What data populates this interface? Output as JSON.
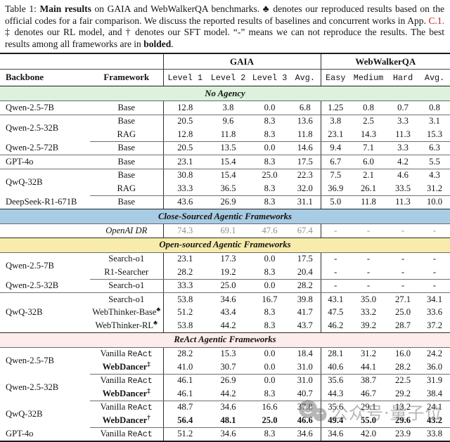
{
  "caption": {
    "segments": [
      {
        "t": "Table 1: "
      },
      {
        "t": "Main results",
        "b": true
      },
      {
        "t": " on GAIA and WebWalkerQA benchmarks. ♣ denotes our reproduced results based on the official codes for a fair comparison. We discuss the reported results of baselines and concurrent works in App. "
      },
      {
        "t": "C.1.",
        "red": true
      },
      {
        "t": " ‡ denotes our RL model, and † denotes our SFT model. “-” means we can not reproduce the results. The best results among all frameworks are in "
      },
      {
        "t": "bolded",
        "b": true
      },
      {
        "t": "."
      }
    ]
  },
  "table": {
    "group_headers": [
      "GAIA",
      "WebWalkerQA"
    ],
    "columns": [
      "Backbone",
      "Framework",
      "Level 1",
      "Level 2",
      "Level 3",
      "Avg.",
      "Easy",
      "Medium",
      "Hard",
      "Avg."
    ],
    "sections": [
      {
        "title": "No Agency",
        "bg": "#dcf2dc",
        "groups": [
          {
            "backbone": "Qwen-2.5-7B",
            "rows": [
              {
                "fw": "Base",
                "vals": [
                  "12.8",
                  "3.8",
                  "0.0",
                  "6.8",
                  "1.25",
                  "0.8",
                  "0.7",
                  "0.8"
                ]
              }
            ]
          },
          {
            "backbone": "Qwen-2.5-32B",
            "rows": [
              {
                "fw": "Base",
                "vals": [
                  "20.5",
                  "9.6",
                  "8.3",
                  "13.6",
                  "3.8",
                  "2.5",
                  "3.3",
                  "3.1"
                ]
              },
              {
                "fw": "RAG",
                "vals": [
                  "12.8",
                  "11.8",
                  "8.3",
                  "11.8",
                  "23.1",
                  "14.3",
                  "11.3",
                  "15.3"
                ]
              }
            ]
          },
          {
            "backbone": "Qwen-2.5-72B",
            "rows": [
              {
                "fw": "Base",
                "vals": [
                  "20.5",
                  "13.5",
                  "0.0",
                  "14.6",
                  "9.4",
                  "7.1",
                  "3.3",
                  "6.3"
                ]
              }
            ]
          },
          {
            "backbone": "GPT-4o",
            "rows": [
              {
                "fw": "Base",
                "vals": [
                  "23.1",
                  "15.4",
                  "8.3",
                  "17.5",
                  "6.7",
                  "6.0",
                  "4.2",
                  "5.5"
                ]
              }
            ]
          },
          {
            "backbone": "QwQ-32B",
            "rows": [
              {
                "fw": "Base",
                "vals": [
                  "30.8",
                  "15.4",
                  "25.0",
                  "22.3",
                  "7.5",
                  "2.1",
                  "4.6",
                  "4.3"
                ]
              },
              {
                "fw": "RAG",
                "vals": [
                  "33.3",
                  "36.5",
                  "8.3",
                  "32.0",
                  "36.9",
                  "26.1",
                  "33.5",
                  "31.2"
                ]
              }
            ]
          },
          {
            "backbone": "DeepSeek-R1-671B",
            "rows": [
              {
                "fw": "Base",
                "vals": [
                  "43.6",
                  "26.9",
                  "8.3",
                  "31.1",
                  "5.0",
                  "11.8",
                  "11.3",
                  "10.0"
                ]
              }
            ]
          }
        ]
      },
      {
        "title": "Close-Sourced Agentic Frameworks",
        "bg": "#a9cce5",
        "groups": [
          {
            "backbone": "",
            "rows": [
              {
                "fw": "OpenAI DR",
                "fw_italic": true,
                "gray_vals": true,
                "vals": [
                  "74.3",
                  "69.1",
                  "47.6",
                  "67.4",
                  "-",
                  "-",
                  "-",
                  "-"
                ]
              }
            ]
          }
        ]
      },
      {
        "title": "Open-sourced Agentic Frameworks",
        "bg": "#f8ecad",
        "groups": [
          {
            "backbone": "Qwen-2.5-7B",
            "rows": [
              {
                "fw": "Search-o1",
                "vals": [
                  "23.1",
                  "17.3",
                  "0.0",
                  "17.5",
                  "-",
                  "-",
                  "-",
                  "-"
                ]
              },
              {
                "fw": "R1-Searcher",
                "vals": [
                  "28.2",
                  "19.2",
                  "8.3",
                  "20.4",
                  "-",
                  "-",
                  "-",
                  "-"
                ]
              }
            ]
          },
          {
            "backbone": "Qwen-2.5-32B",
            "rows": [
              {
                "fw": "Search-o1",
                "vals": [
                  "33.3",
                  "25.0",
                  "0.0",
                  "28.2",
                  "-",
                  "-",
                  "-",
                  "-"
                ]
              }
            ]
          },
          {
            "backbone": "QwQ-32B",
            "rows": [
              {
                "fw": "Search-o1",
                "vals": [
                  "53.8",
                  "34.6",
                  "16.7",
                  "39.8",
                  "43.1",
                  "35.0",
                  "27.1",
                  "34.1"
                ]
              },
              {
                "fw": "WebThinker-Base",
                "sup": "♣",
                "vals": [
                  "51.2",
                  "43.4",
                  "8.3",
                  "41.7",
                  "47.5",
                  "33.2",
                  "25.0",
                  "33.6"
                ]
              },
              {
                "fw": "WebThinker-RL",
                "sup": "♣",
                "vals": [
                  "53.8",
                  "44.2",
                  "8.3",
                  "43.7",
                  "46.2",
                  "39.2",
                  "28.7",
                  "37.2"
                ]
              }
            ]
          }
        ]
      },
      {
        "title": "ReAct Agentic Frameworks",
        "bg": "#fdecec",
        "groups": [
          {
            "backbone": "Qwen-2.5-7B",
            "rows": [
              {
                "fw": "Vanilla ",
                "fw_mono": "ReAct",
                "vals": [
                  "28.2",
                  "15.3",
                  "0.0",
                  "18.4",
                  "28.1",
                  "31.2",
                  "16.0",
                  "24.2"
                ]
              },
              {
                "fw": "WebDancer",
                "sup": "‡",
                "fw_bold": true,
                "vals": [
                  "41.0",
                  "30.7",
                  "0.0",
                  "31.0",
                  "40.6",
                  "44.1",
                  "28.2",
                  "36.0"
                ]
              }
            ]
          },
          {
            "backbone": "Qwen-2.5-32B",
            "rows": [
              {
                "fw": "Vanilla ",
                "fw_mono": "ReAct",
                "vals": [
                  "46.1",
                  "26.9",
                  "0.0",
                  "31.0",
                  "35.6",
                  "38.7",
                  "22.5",
                  "31.9"
                ]
              },
              {
                "fw": "WebDancer",
                "sup": "‡",
                "fw_bold": true,
                "vals": [
                  "46.1",
                  "44.2",
                  "8.3",
                  "40.7",
                  "44.3",
                  "46.7",
                  "29.2",
                  "38.4"
                ]
              }
            ]
          },
          {
            "backbone": "QwQ-32B",
            "rows": [
              {
                "fw": "Vanilla ",
                "fw_mono": "ReAct",
                "vals": [
                  "48.7",
                  "34.6",
                  "16.6",
                  "37.8",
                  "35.6",
                  "29.1",
                  "13.2",
                  "24.1"
                ]
              },
              {
                "fw": "WebDancer",
                "sup": "†",
                "fw_bold": true,
                "bold_vals": true,
                "vals": [
                  "56.4",
                  "48.1",
                  "25.0",
                  "46.6",
                  "49.4",
                  "55.0",
                  "29.6",
                  "43.2"
                ]
              }
            ]
          },
          {
            "backbone": "GPT-4o",
            "rows": [
              {
                "fw": "Vanilla ",
                "fw_mono": "ReAct",
                "vals": [
                  "51.2",
                  "34.6",
                  "8.3",
                  "34.6",
                  "34.6",
                  "42.0",
                  "23.9",
                  "33.8"
                ]
              }
            ]
          }
        ]
      }
    ]
  },
  "watermark": {
    "text": "公众号·量子位",
    "icon": "wechat-bubbles-icon"
  }
}
